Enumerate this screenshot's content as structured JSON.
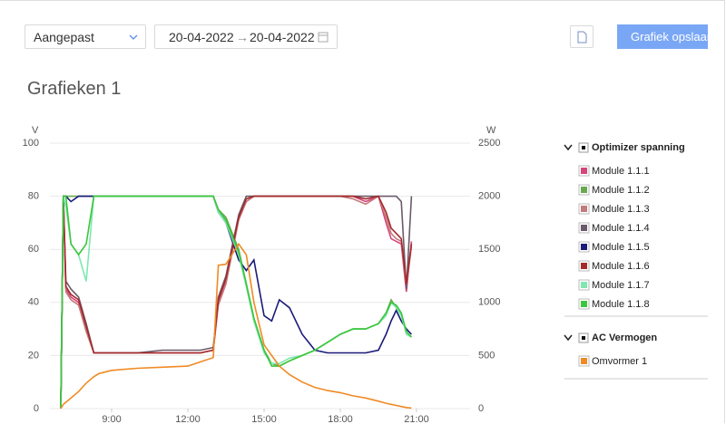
{
  "controls": {
    "range": "Aangepast",
    "date_from": "20-04-2022",
    "date_separator": "→",
    "date_to": "20-04-2022",
    "save_button": "Grafiek opslaan"
  },
  "page_title": "Grafieken 1",
  "legend_groups": [
    "Optimizer spanning",
    "AC Vermogen"
  ],
  "chart_data": {
    "type": "line",
    "y_label": "V",
    "y2_label": "W",
    "x": [
      7.0,
      7.1,
      7.2,
      7.4,
      7.7,
      8.0,
      8.3,
      8.5,
      9.0,
      10.0,
      11.0,
      12.0,
      12.5,
      13.0,
      13.2,
      13.5,
      14.0,
      14.3,
      14.6,
      15.0,
      15.3,
      15.6,
      16.0,
      16.5,
      17.0,
      17.5,
      18.0,
      18.5,
      19.0,
      19.5,
      19.8,
      20.0,
      20.2,
      20.4,
      20.6,
      20.8
    ],
    "xlim": [
      6.57,
      23.0
    ],
    "xticks": [
      {
        "value": 9,
        "label": "9:00"
      },
      {
        "value": 12,
        "label": "12:00"
      },
      {
        "value": 15,
        "label": "15:00"
      },
      {
        "value": 18,
        "label": "18:00"
      },
      {
        "value": 21,
        "label": "21:00"
      }
    ],
    "ylim": [
      0,
      100
    ],
    "yticks": [
      0,
      20,
      40,
      60,
      80,
      100
    ],
    "y2lim": [
      0,
      2500
    ],
    "y2ticks": [
      0,
      500,
      1000,
      1500,
      2000,
      2500
    ],
    "grid": true,
    "series": [
      {
        "name": "Module 1.1.1",
        "color": "#d6457a",
        "values": [
          0,
          80,
          45,
          42,
          40,
          30,
          21,
          21,
          21,
          21,
          21,
          21,
          21,
          22,
          40,
          48,
          72,
          78,
          80,
          80,
          80,
          80,
          80,
          80,
          80,
          80,
          80,
          80,
          78,
          80,
          70,
          64,
          63,
          62,
          44,
          63
        ]
      },
      {
        "name": "Module 1.1.2",
        "color": "#6aa84f",
        "values": [
          0,
          80,
          80,
          80,
          80,
          80,
          80,
          80,
          80,
          80,
          80,
          80,
          80,
          80,
          75,
          72,
          60,
          47,
          34,
          22,
          17,
          16,
          18,
          20,
          22,
          25,
          28,
          30,
          30,
          32,
          36,
          41,
          38,
          36,
          28,
          27
        ]
      },
      {
        "name": "Module 1.1.3",
        "color": "#c47a7a",
        "values": [
          0,
          79,
          44,
          41,
          39,
          29,
          21,
          21,
          21,
          21,
          21,
          21,
          21,
          22,
          39,
          47,
          71,
          78,
          80,
          80,
          80,
          80,
          80,
          80,
          80,
          80,
          80,
          79,
          77,
          80,
          72,
          66,
          64,
          63,
          46,
          61
        ]
      },
      {
        "name": "Module 1.1.4",
        "color": "#6b5a6b",
        "values": [
          0,
          80,
          48,
          45,
          42,
          32,
          21,
          21,
          21,
          21,
          22,
          22,
          22,
          23,
          42,
          50,
          73,
          80,
          80,
          80,
          80,
          80,
          80,
          80,
          80,
          80,
          80,
          80,
          80,
          80,
          80,
          80,
          80,
          78,
          45,
          80
        ]
      },
      {
        "name": "Module 1.1.5",
        "color": "#1a1a7a",
        "values": [
          0,
          80,
          80,
          78,
          80,
          80,
          80,
          80,
          80,
          80,
          80,
          80,
          80,
          80,
          74,
          70,
          56,
          52,
          56,
          35,
          33,
          41,
          38,
          28,
          22,
          21,
          21,
          21,
          21,
          22,
          28,
          33,
          37,
          33,
          30,
          28
        ]
      },
      {
        "name": "Module 1.1.6",
        "color": "#a52a2a",
        "values": [
          0,
          80,
          46,
          43,
          41,
          31,
          21,
          21,
          21,
          21,
          21,
          21,
          21,
          22,
          41,
          49,
          72,
          79,
          80,
          80,
          80,
          80,
          80,
          80,
          80,
          80,
          80,
          80,
          79,
          80,
          74,
          68,
          66,
          64,
          47,
          62
        ]
      },
      {
        "name": "Module 1.1.7",
        "color": "#7ee8b0",
        "values": [
          0,
          80,
          76,
          62,
          58,
          48,
          80,
          80,
          80,
          80,
          80,
          80,
          80,
          80,
          74,
          70,
          58,
          46,
          33,
          21,
          17,
          17,
          19,
          20,
          22,
          25,
          28,
          30,
          30,
          32,
          35,
          40,
          38,
          35,
          28,
          27
        ]
      },
      {
        "name": "Module 1.1.8",
        "color": "#3cc63c",
        "values": [
          0,
          80,
          80,
          62,
          58,
          62,
          80,
          80,
          80,
          80,
          80,
          80,
          80,
          80,
          75,
          71,
          59,
          47,
          34,
          22,
          16,
          16,
          18,
          20,
          22,
          25,
          28,
          30,
          30,
          32,
          36,
          40,
          39,
          36,
          29,
          27
        ]
      },
      {
        "name": "Omvormer 1",
        "color": "#f08a24",
        "axis": "y2",
        "values": [
          0,
          40,
          60,
          100,
          160,
          240,
          300,
          330,
          360,
          380,
          390,
          400,
          440,
          480,
          1350,
          1360,
          1550,
          1450,
          1000,
          600,
          500,
          400,
          320,
          250,
          200,
          170,
          150,
          120,
          100,
          70,
          50,
          40,
          30,
          20,
          10,
          5
        ]
      }
    ]
  }
}
